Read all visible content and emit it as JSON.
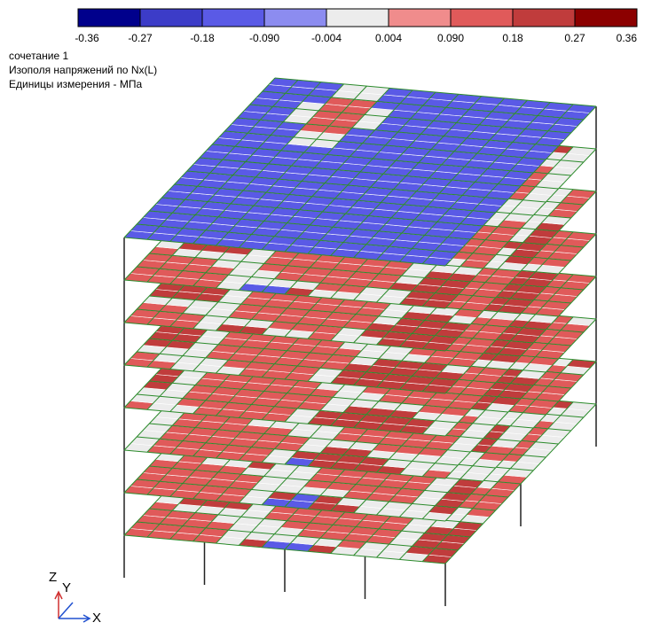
{
  "legend": {
    "colors": [
      "#00008c",
      "#3c3cc8",
      "#5a5ae6",
      "#8c8cf0",
      "#ececec",
      "#f08c8c",
      "#e05a5a",
      "#c03c3c",
      "#8c0000"
    ],
    "labels": [
      "-0.36",
      "-0.27",
      "-0.18",
      "-0.090",
      "-0.004",
      "0.004",
      "0.090",
      "0.18",
      "0.27",
      "0.36"
    ]
  },
  "info": {
    "lines": [
      "сочетание 1",
      "Изополя напряжений по Nx(L)",
      "Единицы измерения - МПа"
    ]
  },
  "axes": {
    "z": "Z",
    "y": "Y",
    "x": "X"
  }
}
